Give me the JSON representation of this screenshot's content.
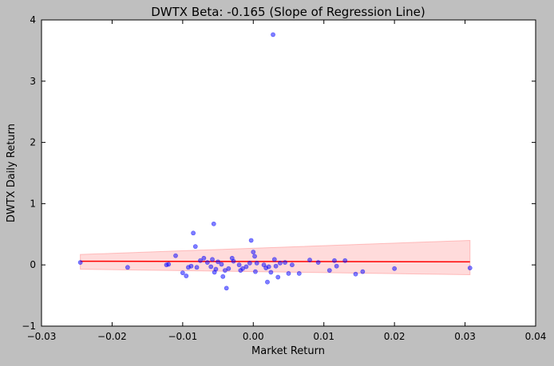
{
  "chart_data": {
    "type": "scatter",
    "title": "DWTX Beta: -0.165 (Slope of Regression Line)",
    "xlabel": "Market Return",
    "ylabel": "DWTX Daily Return",
    "xlim": [
      -0.03,
      0.04
    ],
    "ylim": [
      -1,
      4
    ],
    "xticks": [
      -0.03,
      -0.02,
      -0.01,
      0.0,
      0.01,
      0.02,
      0.03,
      0.04
    ],
    "xtick_labels": [
      "−0.03",
      "−0.02",
      "−0.01",
      "0.00",
      "0.01",
      "0.02",
      "0.03",
      "0.04"
    ],
    "yticks": [
      -1,
      0,
      1,
      2,
      3,
      4
    ],
    "ytick_labels": [
      "−1",
      "0",
      "1",
      "2",
      "3",
      "4"
    ],
    "grid": false,
    "colors": {
      "points": "#0000ff",
      "regression_line": "#ff0000",
      "confidence_band": "#ff9999",
      "plot_bg": "#ffffff",
      "figure_bg": "#bfbfbf"
    },
    "regression": {
      "x": [
        -0.0245,
        0.0307
      ],
      "y": [
        0.06,
        0.05
      ],
      "ci_lower": [
        -0.07,
        -0.16
      ],
      "ci_upper": [
        0.17,
        0.4
      ]
    },
    "points": [
      {
        "x": -0.0245,
        "y": 0.04
      },
      {
        "x": -0.0178,
        "y": -0.04
      },
      {
        "x": -0.0123,
        "y": 0.0
      },
      {
        "x": -0.012,
        "y": 0.01
      },
      {
        "x": -0.011,
        "y": 0.15
      },
      {
        "x": -0.01,
        "y": -0.13
      },
      {
        "x": -0.0095,
        "y": -0.18
      },
      {
        "x": -0.0092,
        "y": -0.04
      },
      {
        "x": -0.0088,
        "y": -0.02
      },
      {
        "x": -0.0085,
        "y": 0.52
      },
      {
        "x": -0.0082,
        "y": 0.3
      },
      {
        "x": -0.008,
        "y": -0.04
      },
      {
        "x": -0.0075,
        "y": 0.07
      },
      {
        "x": -0.007,
        "y": 0.11
      },
      {
        "x": -0.0065,
        "y": 0.04
      },
      {
        "x": -0.006,
        "y": -0.03
      },
      {
        "x": -0.0058,
        "y": 0.09
      },
      {
        "x": -0.0056,
        "y": 0.67
      },
      {
        "x": -0.0055,
        "y": -0.12
      },
      {
        "x": -0.0053,
        "y": -0.07
      },
      {
        "x": -0.005,
        "y": 0.05
      },
      {
        "x": -0.0045,
        "y": 0.01
      },
      {
        "x": -0.0043,
        "y": -0.19
      },
      {
        "x": -0.004,
        "y": -0.09
      },
      {
        "x": -0.0038,
        "y": -0.38
      },
      {
        "x": -0.0035,
        "y": -0.06
      },
      {
        "x": -0.003,
        "y": 0.11
      },
      {
        "x": -0.0028,
        "y": 0.06
      },
      {
        "x": -0.002,
        "y": 0.0
      },
      {
        "x": -0.0018,
        "y": -0.09
      },
      {
        "x": -0.0015,
        "y": -0.06
      },
      {
        "x": -0.001,
        "y": -0.03
      },
      {
        "x": -0.0005,
        "y": 0.03
      },
      {
        "x": -0.0003,
        "y": 0.4
      },
      {
        "x": 0.0,
        "y": 0.21
      },
      {
        "x": 0.0002,
        "y": 0.14
      },
      {
        "x": 0.0003,
        "y": -0.11
      },
      {
        "x": 0.0005,
        "y": 0.03
      },
      {
        "x": 0.0015,
        "y": 0.0
      },
      {
        "x": 0.0018,
        "y": -0.05
      },
      {
        "x": 0.002,
        "y": -0.28
      },
      {
        "x": 0.0022,
        "y": -0.03
      },
      {
        "x": 0.0025,
        "y": -0.12
      },
      {
        "x": 0.0028,
        "y": 3.76
      },
      {
        "x": 0.003,
        "y": 0.09
      },
      {
        "x": 0.0032,
        "y": -0.02
      },
      {
        "x": 0.0035,
        "y": -0.2
      },
      {
        "x": 0.0038,
        "y": 0.03
      },
      {
        "x": 0.0045,
        "y": 0.04
      },
      {
        "x": 0.005,
        "y": -0.14
      },
      {
        "x": 0.0055,
        "y": 0.0
      },
      {
        "x": 0.0065,
        "y": -0.14
      },
      {
        "x": 0.008,
        "y": 0.08
      },
      {
        "x": 0.0092,
        "y": 0.04
      },
      {
        "x": 0.0108,
        "y": -0.09
      },
      {
        "x": 0.0115,
        "y": 0.07
      },
      {
        "x": 0.0118,
        "y": -0.02
      },
      {
        "x": 0.013,
        "y": 0.07
      },
      {
        "x": 0.0145,
        "y": -0.15
      },
      {
        "x": 0.0155,
        "y": -0.11
      },
      {
        "x": 0.02,
        "y": -0.06
      },
      {
        "x": 0.0307,
        "y": -0.05
      }
    ]
  }
}
